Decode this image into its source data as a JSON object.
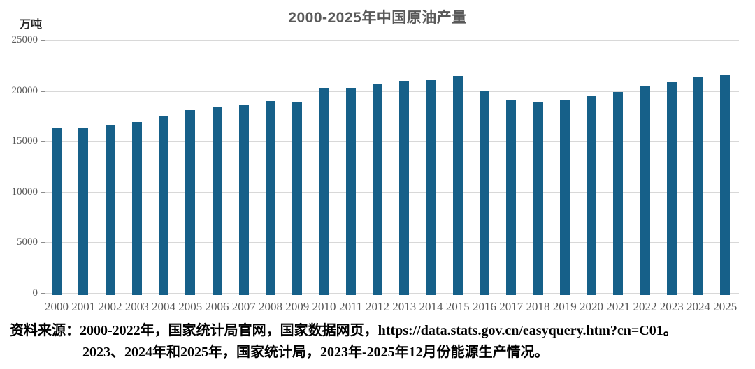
{
  "title": "2000-2025年中国原油产量",
  "unit_label": "万吨",
  "source": {
    "line1": "资料来源：2000-2022年，国家统计局官网，国家数据网页，https://data.stats.gov.cn/easyquery.htm?cn=C01。",
    "line2": "2023、2024年和2025年，国家统计局，2023年-2025年12月份能源生产情况。"
  },
  "colors": {
    "bar": "#166089",
    "gridline": "#d8d8d8",
    "axis_text": "#595959",
    "title_text": "#595959",
    "source_text": "#000000",
    "background": "#ffffff"
  },
  "chart_data": {
    "type": "bar",
    "title": "2000-2025年中国原油产量",
    "xlabel": "",
    "ylabel": "万吨",
    "categories": [
      "2000",
      "2001",
      "2002",
      "2003",
      "2004",
      "2005",
      "2006",
      "2007",
      "2008",
      "2009",
      "2010",
      "2011",
      "2012",
      "2013",
      "2014",
      "2015",
      "2016",
      "2017",
      "2018",
      "2019",
      "2020",
      "2021",
      "2022",
      "2023",
      "2024",
      "2025"
    ],
    "values": [
      16300,
      16396,
      16700,
      16960,
      17587,
      18135,
      18477,
      18632,
      19043,
      18949,
      20301,
      20288,
      20748,
      20992,
      21143,
      21456,
      19969,
      19151,
      18911,
      19101,
      19477,
      19888,
      20467,
      20891,
      21320,
      21650
    ],
    "ylim": [
      0,
      25000
    ],
    "yticks": [
      0,
      5000,
      10000,
      15000,
      20000,
      25000
    ],
    "grid": true,
    "legend": false,
    "bar_color": "#166089"
  }
}
